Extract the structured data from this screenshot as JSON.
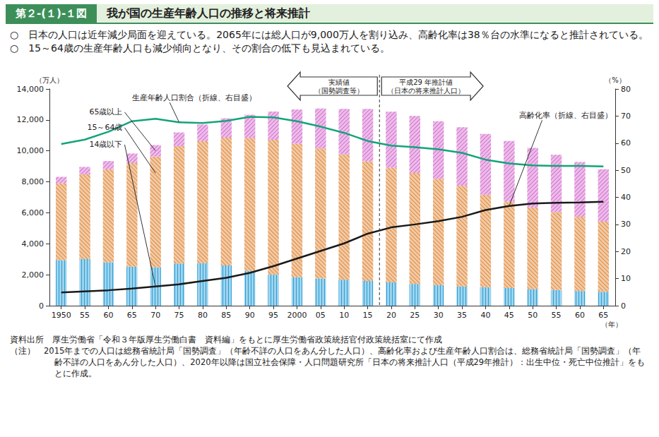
{
  "chart_data": {
    "type": "bar",
    "figure_label": "第２-(１)-１図",
    "title": "我が国の生産年齢人口の推移と将来推計",
    "subtitle": [
      "○　日本の人口は近年減少局面を迎えている。2065年には総人口が9,000万人を割り込み、高齢化率は38％台の水準になると推計されている。",
      "○　15～64歳の生産年齢人口も減少傾向となり、その割合の低下も見込まれている。"
    ],
    "annotations": {
      "actual": [
        "実績値",
        "（国勢調査等）"
      ],
      "projection": [
        "平成29 年推計値",
        "（日本の将来推計人口）"
      ]
    },
    "source": [
      "資料出所　厚生労働省「令和３年版厚生労働白書　資料編」をもとに厚生労働省政策統括官付政策統括室にて作成",
      "（注）　2015年までの人口は総務省統計局「国勢調査」（年齢不詳の人口をあん分した人口）、高齢化率および生産年齢人口割合は、総務省統計局「国勢調査」（年齢不詳の人口をあん分した人口）、2020年以降は国立社会保障・人口問題研究所「日本の将来推計人口（平成29年推計）：出生中位・死亡中位推計」をもとに作成。"
    ],
    "x_label": "（年）",
    "y_label": "（万人）",
    "y2_label": "（%）",
    "categories": [
      "1950",
      "55",
      "60",
      "65",
      "70",
      "75",
      "80",
      "85",
      "90",
      "95",
      "2000",
      "05",
      "10",
      "15",
      "20",
      "25",
      "30",
      "35",
      "40",
      "45",
      "50",
      "55",
      "60",
      "65"
    ],
    "stacked": true,
    "grid": false,
    "ylim": [
      0,
      14000
    ],
    "yticks": [
      0,
      {
        "value": 2000,
        "label": "2,000"
      },
      {
        "value": 4000,
        "label": "4,000"
      },
      {
        "value": 6000,
        "label": "6,000"
      },
      {
        "value": 8000,
        "label": "8,000"
      },
      {
        "value": 10000,
        "label": "10,000"
      },
      {
        "value": 12000,
        "label": "12,000"
      },
      {
        "value": 14000,
        "label": "14,000"
      }
    ],
    "y2lim": [
      0,
      80
    ],
    "y2ticks": [
      0,
      10,
      20,
      30,
      40,
      50,
      60,
      70,
      80
    ],
    "series": [
      {
        "name": "14歳以下",
        "type": "bar",
        "color": "#2a9fd6",
        "values": [
          2943,
          3012,
          2807,
          2517,
          2482,
          2722,
          2751,
          2603,
          2249,
          2001,
          1847,
          1752,
          1680,
          1595,
          1507,
          1407,
          1321,
          1246,
          1194,
          1138,
          1077,
          1012,
          951,
          898
        ]
      },
      {
        "name": "15～64歳",
        "type": "bar",
        "color": "#e08a3c",
        "values": [
          4966,
          5473,
          6000,
          6693,
          7157,
          7581,
          7884,
          8251,
          8590,
          8716,
          8622,
          8409,
          8103,
          7728,
          7406,
          7170,
          6875,
          6494,
          5978,
          5584,
          5275,
          5028,
          4793,
          4529
        ]
      },
      {
        "name": "65歳以上",
        "type": "bar",
        "color": "#d66fd0",
        "values": [
          411,
          475,
          535,
          618,
          733,
          887,
          1065,
          1247,
          1493,
          1826,
          2204,
          2576,
          2925,
          3387,
          3619,
          3677,
          3716,
          3782,
          3921,
          3919,
          3841,
          3704,
          3540,
          3381
        ]
      },
      {
        "name": "生産年齢人口割合（折線、右目盛）",
        "type": "line",
        "axis": "y2",
        "color": "#14a37a",
        "values": [
          59.7,
          61.3,
          64.2,
          68.1,
          69.0,
          67.7,
          67.4,
          68.2,
          69.7,
          69.5,
          68.1,
          66.1,
          63.8,
          60.8,
          59.1,
          58.5,
          57.7,
          56.4,
          53.9,
          52.5,
          51.8,
          51.6,
          51.6,
          51.4
        ]
      },
      {
        "name": "高齢化率（折線、右目盛）",
        "type": "line",
        "axis": "y2",
        "color": "#1a1a1a",
        "values": [
          4.9,
          5.3,
          5.7,
          6.3,
          7.1,
          7.9,
          9.1,
          10.3,
          12.1,
          14.6,
          17.4,
          20.2,
          23.0,
          26.6,
          28.9,
          30.0,
          31.2,
          32.8,
          35.3,
          36.8,
          37.7,
          38.0,
          38.1,
          38.4
        ]
      }
    ]
  }
}
